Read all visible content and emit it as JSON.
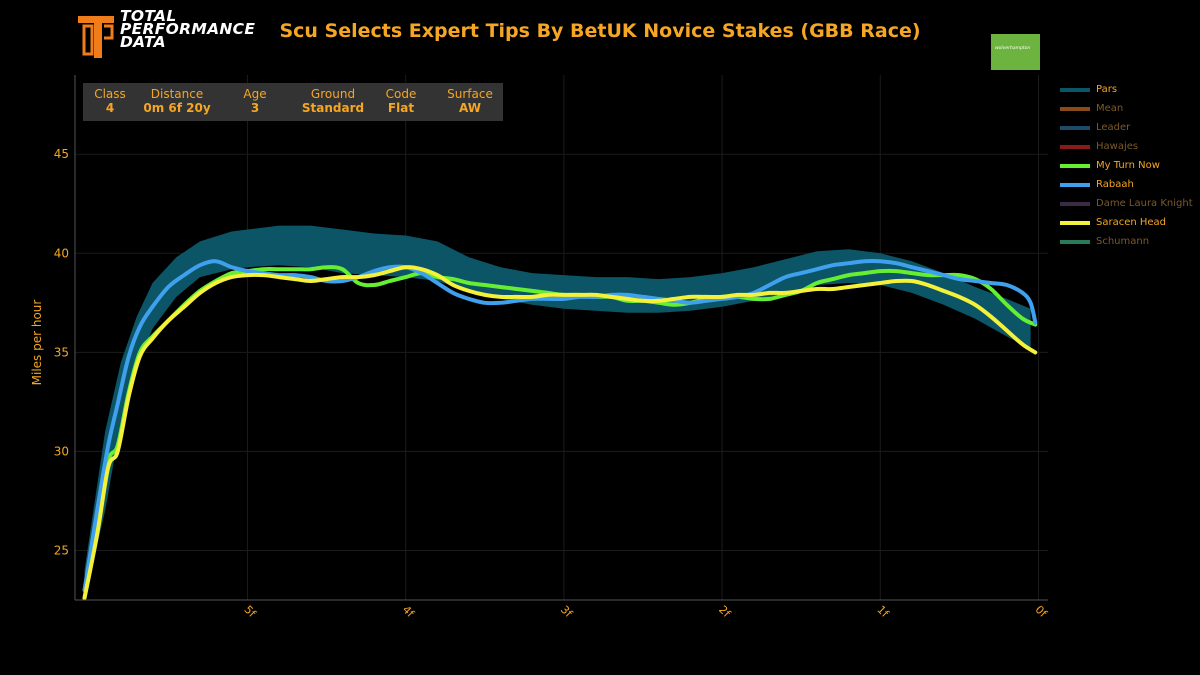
{
  "header": {
    "logo_lines": [
      "TOTAL",
      "PERFORMANCE",
      "DATA"
    ],
    "title": "Scu Selects Expert Tips By BetUK Novice Stakes (GBB Race)",
    "venue_badge": "wolverhampton"
  },
  "race_info": [
    {
      "label": "Class",
      "value": "4"
    },
    {
      "label": "Distance",
      "value": "0m 6f 20y"
    },
    {
      "label": "Age",
      "value": "3"
    },
    {
      "label": "Ground",
      "value": "Standard"
    },
    {
      "label": "Code",
      "value": "Flat"
    },
    {
      "label": "Surface",
      "value": "AW"
    }
  ],
  "colors": {
    "accent": "#f5a623",
    "pars_band": "#0b5566",
    "my_turn_now": "#66ee33",
    "rabaah": "#3fa0ee",
    "saracen_head": "#f5f03a"
  },
  "chart_data": {
    "type": "line",
    "ylabel": "Miles per hour",
    "xlabel": "",
    "ylim": [
      22.5,
      49
    ],
    "xlim": [
      6.09,
      -0.06
    ],
    "x_reversed": true,
    "y_ticks": [
      25,
      30,
      35,
      40,
      45
    ],
    "x_ticks": [
      {
        "value": 5,
        "label": "5f"
      },
      {
        "value": 4,
        "label": "4f"
      },
      {
        "value": 3,
        "label": "3f"
      },
      {
        "value": 2,
        "label": "2f"
      },
      {
        "value": 1,
        "label": "1f"
      },
      {
        "value": 0,
        "label": "0f"
      }
    ],
    "legend": {
      "position": "right",
      "entries": [
        {
          "name": "Pars",
          "color": "#0b5566",
          "active": true
        },
        {
          "name": "Mean",
          "color": "#8a4a1a",
          "active": false
        },
        {
          "name": "Leader",
          "color": "#1d4a66",
          "active": false
        },
        {
          "name": "Hawajes",
          "color": "#8a1a1a",
          "active": false
        },
        {
          "name": "My Turn Now",
          "color": "#66ee33",
          "active": true
        },
        {
          "name": "Rabaah",
          "color": "#3fa0ee",
          "active": true
        },
        {
          "name": "Dame Laura Knight",
          "color": "#3a2a44",
          "active": false
        },
        {
          "name": "Saracen Head",
          "color": "#f5f03a",
          "active": true
        },
        {
          "name": "Schumann",
          "color": "#2a7a5a",
          "active": false
        }
      ]
    },
    "pars_band": {
      "x": [
        6.03,
        5.9,
        5.8,
        5.7,
        5.6,
        5.45,
        5.3,
        5.1,
        5.0,
        4.8,
        4.6,
        4.4,
        4.2,
        4.0,
        3.8,
        3.6,
        3.4,
        3.2,
        3.0,
        2.8,
        2.6,
        2.4,
        2.2,
        2.0,
        1.8,
        1.6,
        1.4,
        1.2,
        1.0,
        0.8,
        0.6,
        0.4,
        0.2,
        0.05
      ],
      "upper": [
        24.0,
        31.0,
        34.5,
        36.8,
        38.5,
        39.8,
        40.6,
        41.1,
        41.2,
        41.4,
        41.4,
        41.2,
        41.0,
        40.9,
        40.6,
        39.8,
        39.3,
        39.0,
        38.9,
        38.8,
        38.8,
        38.7,
        38.8,
        39.0,
        39.3,
        39.7,
        40.1,
        40.2,
        40.0,
        39.6,
        39.0,
        38.3,
        37.7,
        37.2
      ],
      "lower": [
        22.5,
        27.0,
        31.5,
        34.2,
        36.2,
        37.8,
        38.8,
        39.2,
        39.3,
        39.4,
        39.3,
        39.0,
        38.9,
        38.8,
        38.6,
        38.1,
        37.7,
        37.4,
        37.2,
        37.1,
        37.0,
        37.0,
        37.1,
        37.3,
        37.6,
        38.0,
        38.4,
        38.5,
        38.4,
        38.0,
        37.4,
        36.7,
        35.8,
        35.2
      ]
    },
    "series": [
      {
        "name": "My Turn Now",
        "color": "#66ee33",
        "x": [
          6.03,
          5.95,
          5.88,
          5.82,
          5.75,
          5.68,
          5.6,
          5.5,
          5.4,
          5.3,
          5.2,
          5.1,
          5.0,
          4.9,
          4.8,
          4.7,
          4.6,
          4.5,
          4.4,
          4.3,
          4.2,
          4.1,
          4.0,
          3.9,
          3.8,
          3.7,
          3.6,
          3.5,
          3.4,
          3.3,
          3.2,
          3.1,
          3.0,
          2.9,
          2.8,
          2.7,
          2.6,
          2.5,
          2.4,
          2.3,
          2.2,
          2.1,
          2.0,
          1.9,
          1.8,
          1.7,
          1.6,
          1.5,
          1.4,
          1.3,
          1.2,
          1.1,
          1.0,
          0.9,
          0.8,
          0.7,
          0.6,
          0.5,
          0.4,
          0.3,
          0.2,
          0.1,
          0.02
        ],
        "values": [
          22.6,
          26.0,
          29.5,
          30.3,
          33.0,
          35.0,
          35.8,
          36.6,
          37.4,
          38.1,
          38.6,
          39.0,
          39.1,
          39.2,
          39.2,
          39.2,
          39.2,
          39.3,
          39.2,
          38.5,
          38.4,
          38.6,
          38.8,
          39.0,
          38.8,
          38.7,
          38.5,
          38.4,
          38.3,
          38.2,
          38.1,
          38.0,
          37.9,
          37.9,
          37.8,
          37.8,
          37.6,
          37.6,
          37.5,
          37.4,
          37.5,
          37.7,
          37.8,
          37.8,
          37.7,
          37.7,
          37.9,
          38.1,
          38.5,
          38.7,
          38.9,
          39.0,
          39.1,
          39.1,
          39.0,
          38.9,
          38.9,
          38.9,
          38.7,
          38.2,
          37.4,
          36.7,
          36.4
        ]
      },
      {
        "name": "Rabaah",
        "color": "#3fa0ee",
        "x": [
          6.03,
          5.95,
          5.88,
          5.82,
          5.75,
          5.68,
          5.6,
          5.5,
          5.4,
          5.3,
          5.2,
          5.1,
          5.0,
          4.9,
          4.8,
          4.7,
          4.6,
          4.5,
          4.4,
          4.3,
          4.2,
          4.1,
          4.0,
          3.9,
          3.8,
          3.7,
          3.6,
          3.5,
          3.4,
          3.3,
          3.2,
          3.1,
          3.0,
          2.9,
          2.8,
          2.7,
          2.6,
          2.5,
          2.4,
          2.3,
          2.2,
          2.1,
          2.0,
          1.9,
          1.8,
          1.7,
          1.6,
          1.5,
          1.4,
          1.3,
          1.2,
          1.1,
          1.0,
          0.9,
          0.8,
          0.7,
          0.6,
          0.5,
          0.4,
          0.3,
          0.2,
          0.1,
          0.05,
          0.02
        ],
        "values": [
          23.0,
          27.0,
          30.3,
          32.4,
          34.8,
          36.3,
          37.3,
          38.3,
          38.9,
          39.4,
          39.6,
          39.3,
          39.1,
          39.0,
          38.9,
          38.9,
          38.8,
          38.6,
          38.6,
          38.8,
          39.1,
          39.3,
          39.3,
          39.0,
          38.5,
          38.0,
          37.7,
          37.5,
          37.5,
          37.6,
          37.7,
          37.7,
          37.7,
          37.8,
          37.8,
          37.9,
          37.9,
          37.8,
          37.7,
          37.6,
          37.5,
          37.6,
          37.7,
          37.8,
          38.0,
          38.4,
          38.8,
          39.0,
          39.2,
          39.4,
          39.5,
          39.6,
          39.6,
          39.5,
          39.3,
          39.1,
          38.9,
          38.7,
          38.6,
          38.5,
          38.4,
          38.0,
          37.5,
          36.5
        ]
      },
      {
        "name": "Saracen Head",
        "color": "#f5f03a",
        "x": [
          6.03,
          5.95,
          5.88,
          5.82,
          5.75,
          5.68,
          5.6,
          5.5,
          5.4,
          5.3,
          5.2,
          5.1,
          5.0,
          4.9,
          4.8,
          4.7,
          4.6,
          4.5,
          4.4,
          4.3,
          4.2,
          4.1,
          4.0,
          3.9,
          3.8,
          3.7,
          3.6,
          3.5,
          3.4,
          3.3,
          3.2,
          3.1,
          3.0,
          2.9,
          2.8,
          2.7,
          2.6,
          2.5,
          2.4,
          2.3,
          2.2,
          2.1,
          2.0,
          1.9,
          1.8,
          1.7,
          1.6,
          1.5,
          1.4,
          1.3,
          1.2,
          1.1,
          1.0,
          0.9,
          0.8,
          0.7,
          0.6,
          0.5,
          0.4,
          0.3,
          0.2,
          0.1,
          0.02
        ],
        "values": [
          22.6,
          25.8,
          29.2,
          30.0,
          32.8,
          34.8,
          35.7,
          36.6,
          37.3,
          38.0,
          38.5,
          38.8,
          38.9,
          38.9,
          38.8,
          38.7,
          38.6,
          38.7,
          38.8,
          38.8,
          38.9,
          39.1,
          39.3,
          39.2,
          38.9,
          38.4,
          38.1,
          37.9,
          37.8,
          37.8,
          37.8,
          37.9,
          37.9,
          37.9,
          37.9,
          37.8,
          37.7,
          37.6,
          37.6,
          37.7,
          37.8,
          37.8,
          37.8,
          37.9,
          37.9,
          38.0,
          38.0,
          38.1,
          38.2,
          38.2,
          38.3,
          38.4,
          38.5,
          38.6,
          38.6,
          38.4,
          38.1,
          37.8,
          37.4,
          36.8,
          36.1,
          35.4,
          35.0
        ]
      }
    ]
  }
}
